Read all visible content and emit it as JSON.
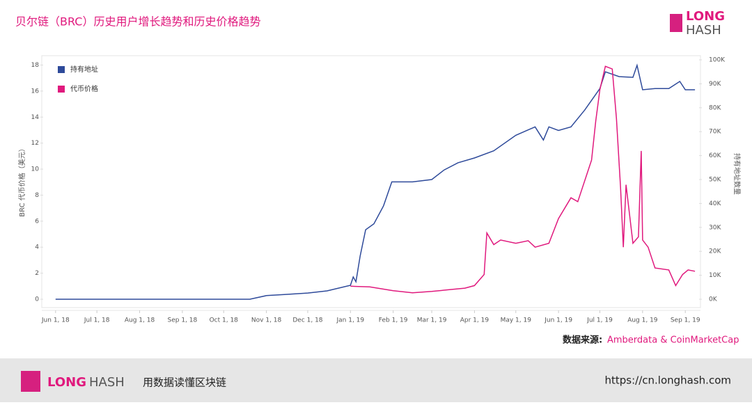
{
  "header": {
    "title": "贝尔链（BRC）历史用户增长趋势和历史价格趋势",
    "logo_top": "LONG",
    "logo_bottom": "HASH"
  },
  "source": {
    "label": "数据来源:",
    "text": "Amberdata & CoinMarketCap"
  },
  "footer": {
    "logo_a": "LONG",
    "logo_b": "HASH",
    "slogan": "用数据读懂区块链",
    "url": "https://cn.longhash.com"
  },
  "chart_data": {
    "type": "line",
    "y_label": "BRC 代币价格（美元）",
    "y2_label": "持有地址数量",
    "xlim": [
      "2018-05-23",
      "2019-09-11"
    ],
    "xticks": [
      {
        "value": "2018-06-01",
        "label": "Jun 1, 18"
      },
      {
        "value": "2018-07-01",
        "label": "Jul 1, 18"
      },
      {
        "value": "2018-08-01",
        "label": "Aug 1, 18"
      },
      {
        "value": "2018-09-01",
        "label": "Sep 1, 18"
      },
      {
        "value": "2018-10-01",
        "label": "Oct 1, 18"
      },
      {
        "value": "2018-11-01",
        "label": "Nov 1, 18"
      },
      {
        "value": "2018-12-01",
        "label": "Dec 1, 18"
      },
      {
        "value": "2019-01-01",
        "label": "Jan 1, 19"
      },
      {
        "value": "2019-02-01",
        "label": "Feb 1, 19"
      },
      {
        "value": "2019-03-01",
        "label": "Mar 1, 19"
      },
      {
        "value": "2019-04-01",
        "label": "Apr 1, 19"
      },
      {
        "value": "2019-05-01",
        "label": "May 1, 19"
      },
      {
        "value": "2019-06-01",
        "label": "Jun 1, 19"
      },
      {
        "value": "2019-07-01",
        "label": "Jul 1, 19"
      },
      {
        "value": "2019-08-01",
        "label": "Aug 1, 19"
      },
      {
        "value": "2019-09-01",
        "label": "Sep 1, 19"
      }
    ],
    "ylim": [
      0,
      18.4
    ],
    "yticks": [
      0,
      2,
      4,
      6,
      8,
      10,
      12,
      14,
      16,
      18
    ],
    "y2lim": [
      0,
      100000
    ],
    "y2ticks": [
      {
        "value": 0,
        "label": "0K"
      },
      {
        "value": 10000,
        "label": "10K"
      },
      {
        "value": 20000,
        "label": "20K"
      },
      {
        "value": 30000,
        "label": "30K"
      },
      {
        "value": 40000,
        "label": "40K"
      },
      {
        "value": 50000,
        "label": "50K"
      },
      {
        "value": 60000,
        "label": "60K"
      },
      {
        "value": 70000,
        "label": "70K"
      },
      {
        "value": 80000,
        "label": "80K"
      },
      {
        "value": 90000,
        "label": "90K"
      },
      {
        "value": {
          "v": 100000
        },
        "label": "100K"
      }
    ],
    "legend": "top-left",
    "series": [
      {
        "name": "持有地址",
        "color": "#2e4a9a",
        "axis": "y2",
        "x": [
          "2018-06-01",
          "2018-10-20",
          "2018-11-01",
          "2018-11-15",
          "2018-12-01",
          "2018-12-15",
          "2019-01-01",
          "2019-01-03",
          "2019-01-05",
          "2019-01-08",
          "2019-01-12",
          "2019-01-18",
          "2019-01-25",
          "2019-01-31",
          "2019-02-15",
          "2019-03-01",
          "2019-03-10",
          "2019-03-20",
          "2019-04-01",
          "2019-04-15",
          "2019-05-01",
          "2019-05-15",
          "2019-05-21",
          "2019-05-25",
          "2019-06-01",
          "2019-06-10",
          "2019-06-20",
          "2019-07-01",
          "2019-07-05",
          "2019-07-15",
          "2019-07-25",
          "2019-07-28",
          "2019-08-01",
          "2019-08-10",
          "2019-08-20",
          "2019-08-28",
          "2019-09-01",
          "2019-09-08"
        ],
        "values": [
          0,
          0,
          1500,
          2000,
          2600,
          3500,
          5800,
          9300,
          7300,
          18000,
          29000,
          31500,
          39000,
          49000,
          49000,
          50000,
          54000,
          57000,
          59000,
          62000,
          68500,
          72000,
          66500,
          72000,
          70500,
          72000,
          79000,
          88000,
          95000,
          93000,
          92700,
          97700,
          87500,
          88000,
          88000,
          91000,
          87500,
          87500
        ]
      },
      {
        "name": "代币价格",
        "color": "#e0197d",
        "x": [
          "2019-01-01",
          "2019-01-15",
          "2019-02-01",
          "2019-02-15",
          "2019-03-01",
          "2019-03-15",
          "2019-03-25",
          "2019-04-01",
          "2019-04-08",
          "2019-04-10",
          "2019-04-15",
          "2019-04-20",
          "2019-05-01",
          "2019-05-10",
          "2019-05-15",
          "2019-05-25",
          "2019-06-01",
          "2019-06-10",
          "2019-06-15",
          "2019-06-25",
          "2019-06-28",
          "2019-07-01",
          "2019-07-05",
          "2019-07-10",
          "2019-07-13",
          "2019-07-16",
          "2019-07-18",
          "2019-07-20",
          "2019-07-25",
          "2019-07-29",
          "2019-07-31",
          "2019-08-01",
          "2019-08-05",
          "2019-08-10",
          "2019-08-20",
          "2019-08-25",
          "2019-08-30",
          "2019-09-03",
          "2019-09-08"
        ],
        "values": [
          1.0,
          0.95,
          0.65,
          0.5,
          0.6,
          0.75,
          0.85,
          1.05,
          1.9,
          5.1,
          4.2,
          4.55,
          4.3,
          4.5,
          4.0,
          4.3,
          6.2,
          7.8,
          7.5,
          10.7,
          13.7,
          16.1,
          17.9,
          17.7,
          13.9,
          8.6,
          4.0,
          8.8,
          4.3,
          4.8,
          11.4,
          4.55,
          4.0,
          2.4,
          2.25,
          1.05,
          1.9,
          2.25,
          2.15
        ]
      }
    ]
  }
}
